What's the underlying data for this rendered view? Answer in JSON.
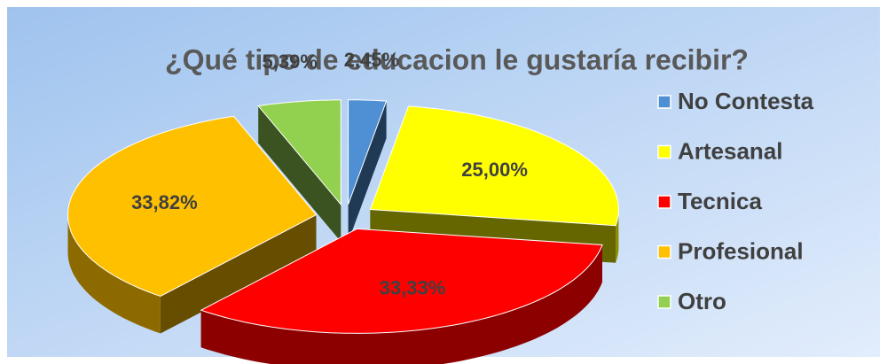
{
  "chart_data": {
    "type": "pie3d",
    "title": "¿Qué tipo de educacion le gustaría recibir?",
    "categories": [
      "No Contesta",
      "Artesanal",
      "Tecnica",
      "Profesional",
      "Otro"
    ],
    "values": [
      2.45,
      25.0,
      33.33,
      33.82,
      5.39
    ],
    "value_labels": [
      "2,45%",
      "25,00%",
      "33,33%",
      "33,82%",
      "5,39%"
    ],
    "colors": [
      "#4f8fd3",
      "#ffff00",
      "#ff0000",
      "#ffc000",
      "#92d050"
    ],
    "legend": "right"
  }
}
